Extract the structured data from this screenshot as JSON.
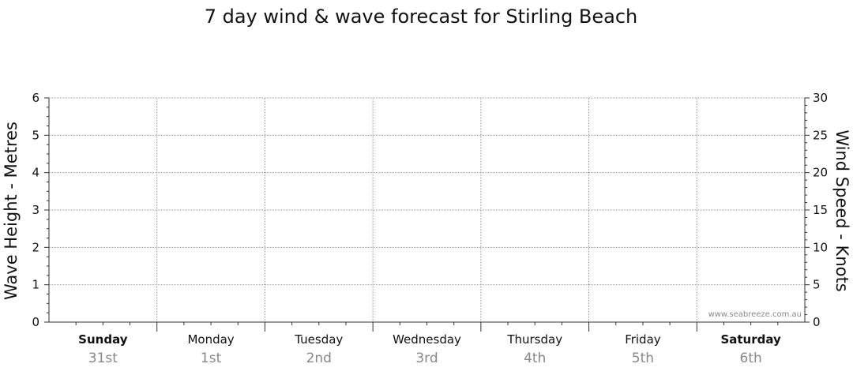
{
  "chart_data": {
    "type": "line",
    "title": "7 day wind & wave forecast for Stirling Beach",
    "ylabel_left": "Wave Height - Metres",
    "ylabel_right": "Wind Speed - Knots",
    "y_left": {
      "range": [
        0,
        6
      ],
      "ticks": [
        0,
        1,
        2,
        3,
        4,
        5,
        6
      ]
    },
    "y_right": {
      "range": [
        0,
        30
      ],
      "ticks": [
        0,
        5,
        10,
        15,
        20,
        25,
        30
      ]
    },
    "grid": true,
    "days": [
      {
        "name": "Sunday",
        "date": "31st",
        "bold": true
      },
      {
        "name": "Monday",
        "date": "1st",
        "bold": false
      },
      {
        "name": "Tuesday",
        "date": "2nd",
        "bold": false
      },
      {
        "name": "Wednesday",
        "date": "3rd",
        "bold": false
      },
      {
        "name": "Thursday",
        "date": "4th",
        "bold": false
      },
      {
        "name": "Friday",
        "date": "5th",
        "bold": false
      },
      {
        "name": "Saturday",
        "date": "6th",
        "bold": true
      }
    ],
    "series": [],
    "watermark": "www.seabreeze.com.au"
  },
  "colors": {
    "grid": "#9a9a9a",
    "axis": "#333333",
    "day_date": "#888888"
  }
}
